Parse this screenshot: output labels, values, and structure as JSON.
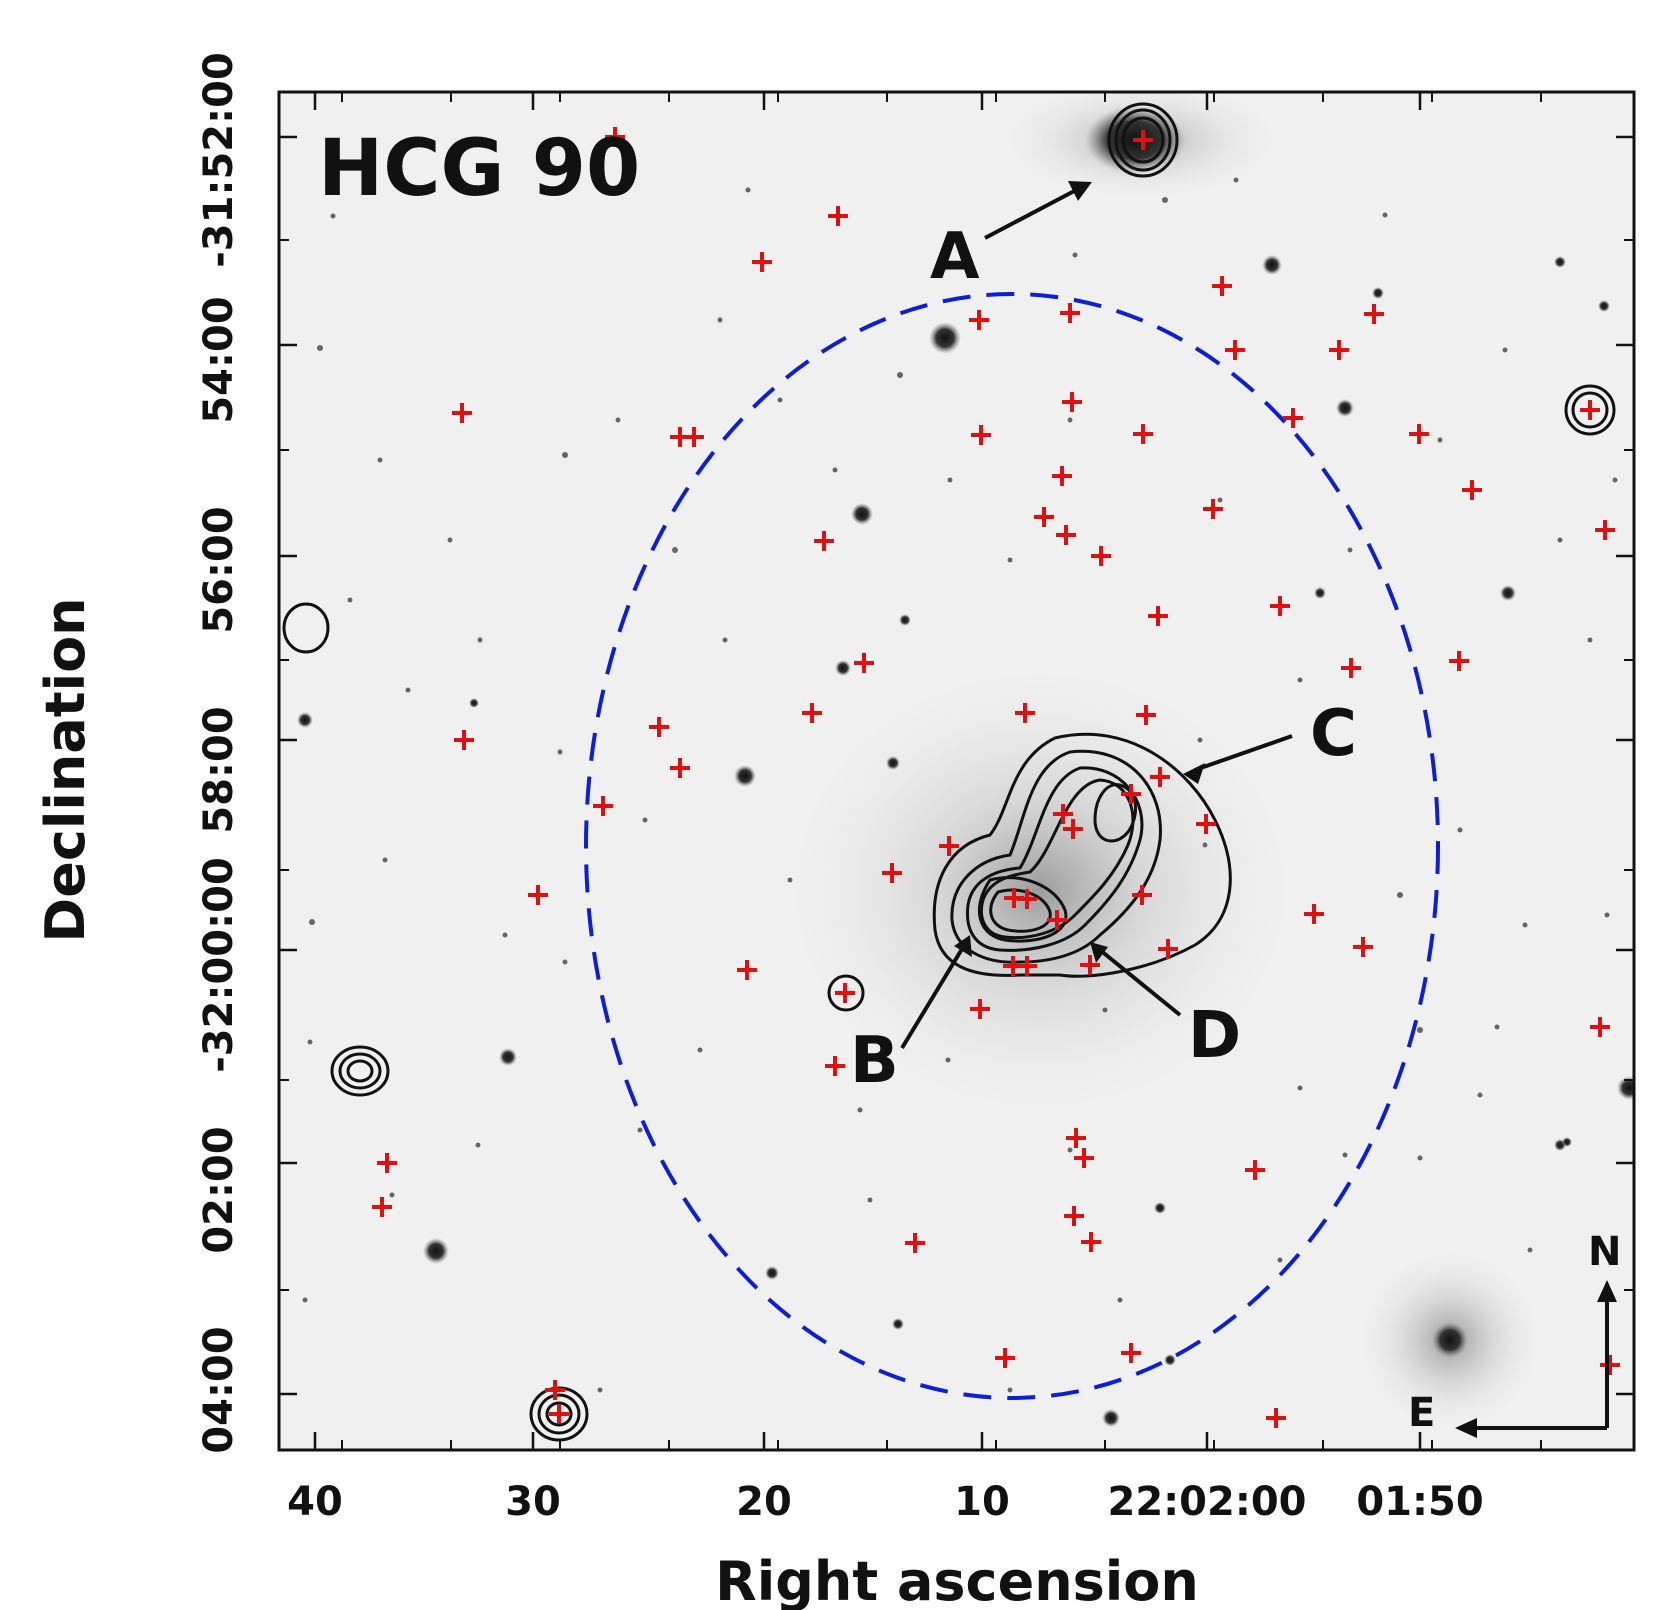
{
  "figure": {
    "title": "HCG 90",
    "x_axis_label": "Right ascension",
    "y_axis_label": "Declination",
    "x_ticks": [
      "40",
      "30",
      "20",
      "10",
      "22:02:00",
      "01:50"
    ],
    "y_ticks": [
      "-31:52:00",
      "54:00",
      "56:00",
      "58:00",
      "-32:00:00",
      "02:00",
      "04:00"
    ],
    "compass": {
      "north": "N",
      "east": "E"
    },
    "galaxy_labels": [
      "A",
      "B",
      "C",
      "D"
    ]
  },
  "colors": {
    "marker": "#e01010",
    "ellipse": "#0a1fd6",
    "contour": "#111111",
    "sky": "#f0f0f0"
  }
}
